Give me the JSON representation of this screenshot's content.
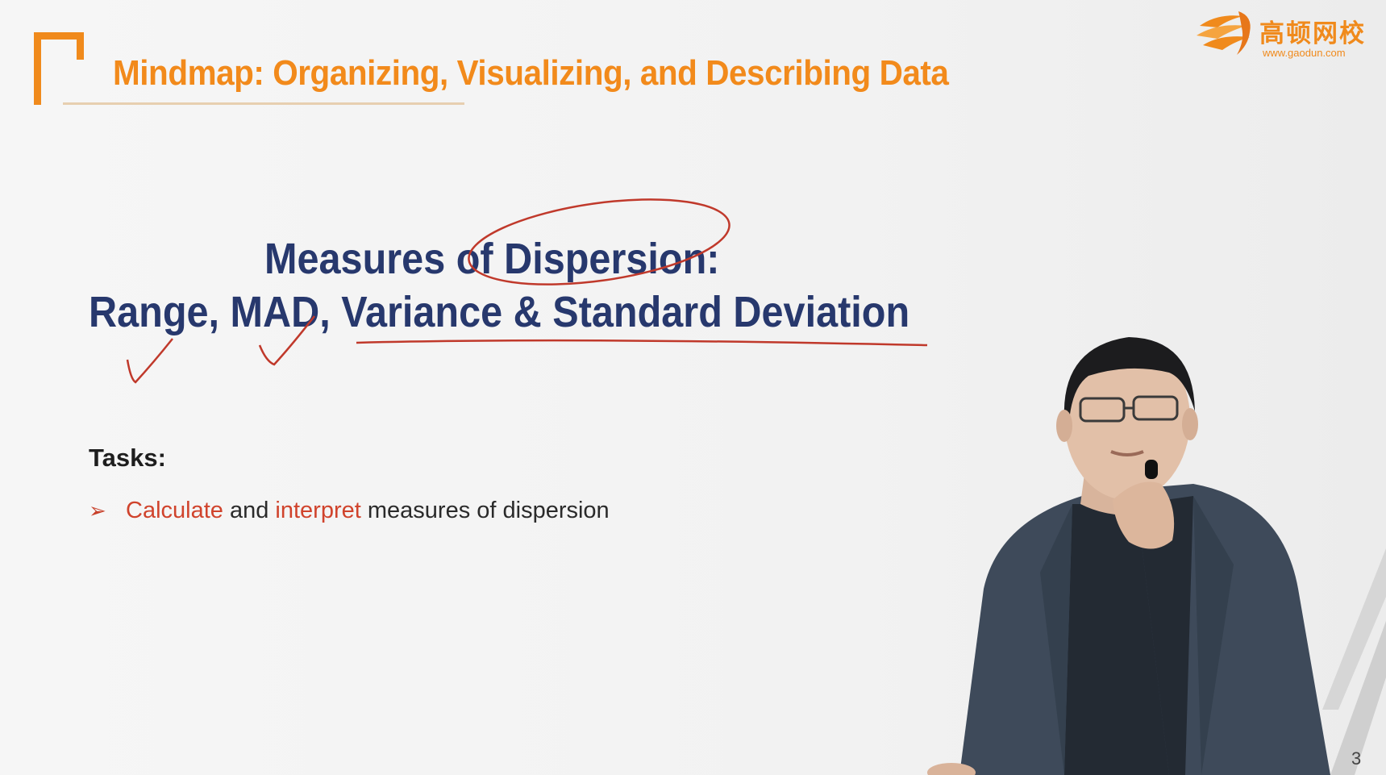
{
  "slide": {
    "title": "Mindmap: Organizing, Visualizing, and Describing Data",
    "heading_line1": "Measures of Dispersion:",
    "heading_line2": "Range, MAD, Variance & Standard Deviation",
    "tasks_label": "Tasks:",
    "task": {
      "verb1": "Calculate",
      "conj": "and",
      "verb2": "interpret",
      "rest": "measures of dispersion"
    },
    "page_number": "3"
  },
  "logo": {
    "name_cn": "高顿网校",
    "url": "www.gaodun.com"
  },
  "colors": {
    "accent_orange": "#f08a1c",
    "heading_navy": "#27386d",
    "highlight_red": "#d0432c",
    "annotation_red": "#c0392b"
  },
  "icons": {
    "bullet": "arrowhead-bullet-icon",
    "brand": "gaodun-logo-icon"
  }
}
